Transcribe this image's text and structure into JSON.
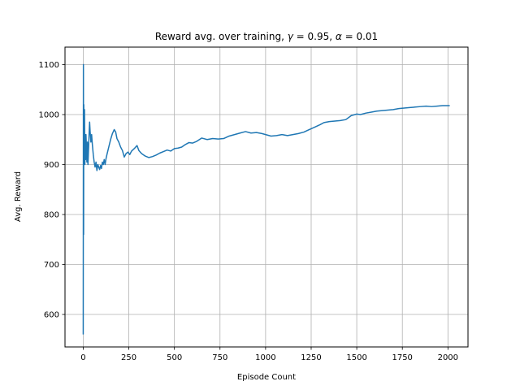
{
  "chart_data": {
    "type": "line",
    "title": "Reward avg. over training, γ = 0.95, α = 0.01",
    "title_parts": {
      "prefix": "Reward avg. over training, ",
      "gamma_symbol": "γ",
      "gamma_eq": " = 0.95, ",
      "alpha_symbol": "α",
      "alpha_eq": " = 0.01"
    },
    "xlabel": "Episode Count",
    "ylabel": "Avg. Reward",
    "xlim": [
      -100,
      2110
    ],
    "ylim": [
      535,
      1135
    ],
    "xticks": [
      0,
      250,
      500,
      750,
      1000,
      1250,
      1500,
      1750,
      2000
    ],
    "yticks": [
      600,
      700,
      800,
      900,
      1000,
      1100
    ],
    "grid": true,
    "line_color": "#1f77b4",
    "series": [
      {
        "points": [
          [
            0,
            560
          ],
          [
            1,
            1100
          ],
          [
            2,
            760
          ],
          [
            3,
            1020
          ],
          [
            4,
            910
          ],
          [
            5,
            980
          ],
          [
            7,
            1010
          ],
          [
            9,
            900
          ],
          [
            11,
            960
          ],
          [
            13,
            910
          ],
          [
            15,
            960
          ],
          [
            18,
            930
          ],
          [
            20,
            905
          ],
          [
            23,
            945
          ],
          [
            26,
            900
          ],
          [
            29,
            930
          ],
          [
            32,
            960
          ],
          [
            35,
            985
          ],
          [
            38,
            965
          ],
          [
            42,
            945
          ],
          [
            46,
            960
          ],
          [
            50,
            940
          ],
          [
            55,
            920
          ],
          [
            60,
            905
          ],
          [
            65,
            895
          ],
          [
            70,
            905
          ],
          [
            75,
            888
          ],
          [
            80,
            900
          ],
          [
            85,
            895
          ],
          [
            90,
            890
          ],
          [
            95,
            898
          ],
          [
            100,
            892
          ],
          [
            105,
            905
          ],
          [
            110,
            900
          ],
          [
            115,
            910
          ],
          [
            120,
            900
          ],
          [
            125,
            912
          ],
          [
            130,
            920
          ],
          [
            140,
            935
          ],
          [
            150,
            950
          ],
          [
            160,
            962
          ],
          [
            170,
            970
          ],
          [
            178,
            965
          ],
          [
            185,
            952
          ],
          [
            195,
            945
          ],
          [
            205,
            935
          ],
          [
            215,
            928
          ],
          [
            225,
            915
          ],
          [
            235,
            922
          ],
          [
            245,
            925
          ],
          [
            255,
            920
          ],
          [
            265,
            927
          ],
          [
            280,
            932
          ],
          [
            295,
            938
          ],
          [
            305,
            928
          ],
          [
            320,
            922
          ],
          [
            340,
            917
          ],
          [
            360,
            914
          ],
          [
            380,
            916
          ],
          [
            400,
            919
          ],
          [
            420,
            923
          ],
          [
            440,
            926
          ],
          [
            460,
            929
          ],
          [
            480,
            927
          ],
          [
            500,
            932
          ],
          [
            520,
            933
          ],
          [
            540,
            935
          ],
          [
            560,
            940
          ],
          [
            580,
            944
          ],
          [
            600,
            943
          ],
          [
            620,
            946
          ],
          [
            650,
            953
          ],
          [
            680,
            950
          ],
          [
            710,
            952
          ],
          [
            740,
            951
          ],
          [
            770,
            952
          ],
          [
            800,
            957
          ],
          [
            830,
            960
          ],
          [
            860,
            963
          ],
          [
            890,
            966
          ],
          [
            920,
            963
          ],
          [
            950,
            964
          ],
          [
            980,
            962
          ],
          [
            1000,
            960
          ],
          [
            1030,
            957
          ],
          [
            1060,
            958
          ],
          [
            1090,
            960
          ],
          [
            1120,
            958
          ],
          [
            1150,
            960
          ],
          [
            1180,
            962
          ],
          [
            1210,
            965
          ],
          [
            1240,
            970
          ],
          [
            1270,
            975
          ],
          [
            1300,
            980
          ],
          [
            1320,
            984
          ],
          [
            1350,
            986
          ],
          [
            1380,
            987
          ],
          [
            1410,
            988
          ],
          [
            1440,
            990
          ],
          [
            1470,
            998
          ],
          [
            1500,
            1001
          ],
          [
            1520,
            1000
          ],
          [
            1550,
            1003
          ],
          [
            1580,
            1005
          ],
          [
            1610,
            1007
          ],
          [
            1640,
            1008
          ],
          [
            1670,
            1009
          ],
          [
            1700,
            1010
          ],
          [
            1730,
            1012
          ],
          [
            1760,
            1013
          ],
          [
            1790,
            1014
          ],
          [
            1820,
            1015
          ],
          [
            1850,
            1016
          ],
          [
            1880,
            1017
          ],
          [
            1910,
            1016
          ],
          [
            1940,
            1017
          ],
          [
            1970,
            1018
          ],
          [
            2000,
            1018
          ],
          [
            2010,
            1018
          ]
        ]
      }
    ]
  }
}
